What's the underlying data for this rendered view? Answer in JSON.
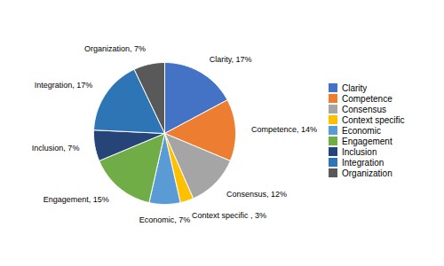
{
  "chart_data": {
    "type": "pie",
    "categories": [
      "Clarity",
      "Competence",
      "Consensus",
      "Context specific",
      "Economic",
      "Engagement",
      "Inclusion",
      "Integration",
      "Organization"
    ],
    "values": [
      17,
      14,
      12,
      3,
      7,
      15,
      7,
      17,
      7
    ],
    "value_labels": [
      "Clarity, 17%",
      "Competence, 14%",
      "Consensus, 12%",
      "Context specific , 3%",
      "Economic, 7%",
      "Engagement, 15%",
      "Inclusion, 7%",
      "Integration, 17%",
      "Organization, 7%"
    ],
    "colors": [
      "#4472C4",
      "#ED7D31",
      "#A5A5A5",
      "#FFC000",
      "#5B9BD5",
      "#70AD47",
      "#264478",
      "#2E75B6",
      "#595959"
    ],
    "data_labels": true,
    "legend": "right"
  }
}
